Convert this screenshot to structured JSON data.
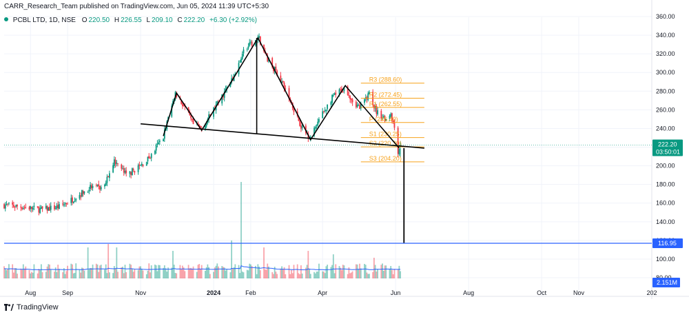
{
  "header": {
    "publisher": "CARR_Research_Team published on TradingView.com, Jun 05, 2024 11:39 UTC+5:30",
    "symbol": "PCBL LTD, 1D, NSE",
    "open_label": "O",
    "open": "220.50",
    "high_label": "H",
    "high": "226.55",
    "low_label": "L",
    "low": "209.10",
    "close_label": "C",
    "close": "222.20",
    "change": "+6.30 (+2.92%)"
  },
  "footer": {
    "brand": "TradingView",
    "logo_icon": "tradingview-logo-icon"
  },
  "colors": {
    "up": "#089981",
    "down": "#f23645",
    "pivot": "#f7a21b",
    "target_line": "#2962ff",
    "drawing": "#000000",
    "volume_ma": "#2962ff"
  },
  "chart_data": {
    "type": "candlestick",
    "symbol": "PCBL LTD",
    "interval": "1D",
    "exchange": "NSE",
    "ylim": [
      80,
      360
    ],
    "y_ticks": [
      80,
      100,
      120,
      140,
      160,
      180,
      200,
      220,
      240,
      260,
      280,
      300,
      320,
      340,
      360
    ],
    "y_tick_labels": [
      "80.00",
      "100.00",
      "120.00",
      "140.00",
      "160.00",
      "180.00",
      "200.00",
      "220.00",
      "240.00",
      "260.00",
      "280.00",
      "300.00",
      "320.00",
      "340.00",
      "360.00"
    ],
    "x_ticks": [
      {
        "label": "Aug",
        "date": "2023-08-01"
      },
      {
        "label": "Sep",
        "date": "2023-09-01"
      },
      {
        "label": "Nov",
        "date": "2023-11-01"
      },
      {
        "label": "2024",
        "date": "2024-01-01",
        "bold": true
      },
      {
        "label": "Feb",
        "date": "2024-02-01"
      },
      {
        "label": "Apr",
        "date": "2024-04-01"
      },
      {
        "label": "Jun",
        "date": "2024-06-01"
      },
      {
        "label": "Aug",
        "date": "2024-08-01"
      },
      {
        "label": "Oct",
        "date": "2024-10-01"
      },
      {
        "label": "Nov",
        "date": "2024-11-01"
      },
      {
        "label": "202",
        "date": "2025-01-01"
      }
    ],
    "x_range": [
      "2023-07-10",
      "2025-01-01"
    ],
    "price_path": [
      [
        "2023-07-10",
        158
      ],
      [
        "2023-07-25",
        156
      ],
      [
        "2023-08-10",
        153
      ],
      [
        "2023-08-25",
        156
      ],
      [
        "2023-09-05",
        164
      ],
      [
        "2023-09-20",
        177
      ],
      [
        "2023-10-01",
        176
      ],
      [
        "2023-10-10",
        206
      ],
      [
        "2023-10-20",
        190
      ],
      [
        "2023-11-01",
        200
      ],
      [
        "2023-11-10",
        211
      ],
      [
        "2023-11-20",
        232
      ],
      [
        "2023-11-30",
        278
      ],
      [
        "2023-12-08",
        262
      ],
      [
        "2023-12-15",
        244
      ],
      [
        "2023-12-22",
        240
      ],
      [
        "2024-01-05",
        268
      ],
      [
        "2024-01-20",
        300
      ],
      [
        "2024-01-25",
        322
      ],
      [
        "2024-02-01",
        330
      ],
      [
        "2024-02-08",
        336
      ],
      [
        "2024-02-15",
        315
      ],
      [
        "2024-02-25",
        295
      ],
      [
        "2024-03-05",
        270
      ],
      [
        "2024-03-15",
        240
      ],
      [
        "2024-03-22",
        230
      ],
      [
        "2024-03-30",
        252
      ],
      [
        "2024-04-10",
        275
      ],
      [
        "2024-04-20",
        284
      ],
      [
        "2024-04-26",
        270
      ],
      [
        "2024-05-02",
        262
      ],
      [
        "2024-05-10",
        278
      ],
      [
        "2024-05-16",
        258
      ],
      [
        "2024-05-24",
        250
      ],
      [
        "2024-05-28",
        257
      ],
      [
        "2024-06-01",
        236
      ],
      [
        "2024-06-03",
        216
      ],
      [
        "2024-06-05",
        222.2
      ]
    ],
    "last_candle": {
      "date": "2024-06-05",
      "open": 220.5,
      "high": 226.55,
      "low": 209.1,
      "close": 222.2
    },
    "price_label": {
      "value": "222.20",
      "countdown": "03:50:01"
    },
    "pivot_levels": [
      {
        "name": "R3",
        "text": "R3 (288.60)",
        "value": 288.6
      },
      {
        "name": "R2",
        "text": "R2 (272.45)",
        "value": 272.45
      },
      {
        "name": "R1",
        "text": "R1 (262.55)",
        "value": 262.55
      },
      {
        "name": "P",
        "text": "P (246.40)",
        "value": 246.4
      },
      {
        "name": "S1",
        "text": "S1 (230.25)",
        "value": 230.25
      },
      {
        "name": "S2",
        "text": "S2 (220.30)",
        "value": 220.3
      },
      {
        "name": "S3",
        "text": "S3 (204.20)",
        "value": 204.2
      }
    ],
    "pivot_range": [
      "2024-05-03",
      "2024-06-25"
    ],
    "target": {
      "value": 116.95,
      "label": "116.95"
    },
    "volume_label": "2.151M",
    "head_and_shoulders": {
      "pattern": [
        [
          "2023-11-20",
          232
        ],
        [
          "2023-12-01",
          278
        ],
        [
          "2023-12-22",
          238
        ],
        [
          "2024-02-07",
          337
        ],
        [
          "2024-03-22",
          228
        ],
        [
          "2024-04-20",
          286
        ],
        [
          "2024-06-04",
          219
        ]
      ],
      "neckline": [
        [
          "2023-11-01",
          245
        ],
        [
          "2024-06-25",
          219
        ]
      ],
      "head_drop": [
        [
          "2024-02-06",
          337
        ],
        [
          "2024-02-06",
          234
        ]
      ],
      "breakdown_drop": [
        [
          "2024-06-08",
          219
        ],
        [
          "2024-06-08",
          116.95
        ]
      ]
    }
  }
}
